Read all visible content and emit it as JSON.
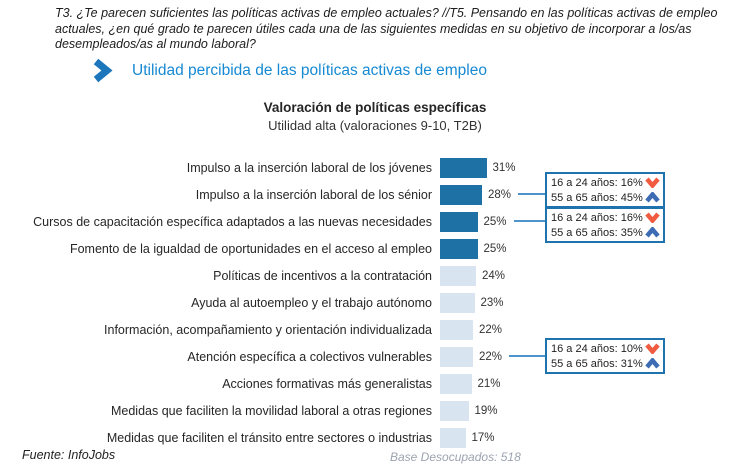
{
  "header": {
    "question_text": "T3. ¿Te parecen suficientes las políticas activas de empleo actuales?  //T5. Pensando en las políticas activas de empleo actuales, ¿en qué grado te parecen útiles cada una de las siguientes medidas en su objetivo de incorporar a los/as desempleados/as al mundo laboral?",
    "section_title": "Utilidad percibida de las políticas activas de empleo",
    "section_title_color": "#1689D3",
    "chevron_icon_color": "#1B76BC"
  },
  "chart": {
    "title": "Valoración de políticas específicas",
    "subtitle": "Utilidad alta (valoraciones 9-10, T2B)"
  },
  "chart_data": {
    "type": "bar",
    "orientation": "horizontal",
    "unit": "%",
    "title": "Valoración de políticas específicas",
    "subtitle": "Utilidad alta (valoraciones 9-10, T2B)",
    "xlim": [
      0,
      35
    ],
    "grid": false,
    "categories": [
      "Impulso a la inserción laboral de los jóvenes",
      "Impulso a la inserción laboral de los sénior",
      "Cursos de capacitación específica adaptados a las nuevas necesidades",
      "Fomento de la igualdad de oportunidades en el acceso al empleo",
      "Políticas de incentivos a la contratación",
      "Ayuda al autoempleo y el trabajo autónomo",
      "Información, acompañamiento y orientación individualizada",
      "Atención específica a colectivos vulnerables",
      "Acciones formativas más generalistas",
      "Medidas que faciliten la movilidad laboral a otras regiones",
      "Medidas que faciliten el tránsito entre sectores o industrias"
    ],
    "values": [
      31,
      28,
      25,
      25,
      24,
      23,
      22,
      22,
      21,
      19,
      17
    ],
    "value_labels": [
      "31%",
      "28%",
      "25%",
      "25%",
      "24%",
      "23%",
      "22%",
      "22%",
      "21%",
      "19%",
      "17%"
    ],
    "emphasized_rows": [
      0,
      1,
      2,
      3
    ],
    "colors": {
      "bar_emphasis": "#1E71A5",
      "bar_muted": "#D8E5F0",
      "connector": "#4E94CC",
      "callout_border": "#1E72AE",
      "arrow_down": "#F15B40",
      "arrow_up": "#3D6CB4"
    },
    "callouts": [
      {
        "row_index": 1,
        "lines": [
          {
            "text": "16 a 24 años: 16%",
            "direction": "down"
          },
          {
            "text": "55 a 65 años: 45%",
            "direction": "up"
          }
        ]
      },
      {
        "row_index": 2,
        "lines": [
          {
            "text": "16 a 24 años: 16%",
            "direction": "down"
          },
          {
            "text": "55 a 65 años: 35%",
            "direction": "up"
          }
        ]
      },
      {
        "row_index": 7,
        "lines": [
          {
            "text": "16 a 24 años: 10%",
            "direction": "down"
          },
          {
            "text": "55 a 65 años: 31%",
            "direction": "up"
          }
        ]
      }
    ]
  },
  "footer": {
    "source": "Fuente: InfoJobs",
    "base": "Base Desocupados: 518"
  }
}
